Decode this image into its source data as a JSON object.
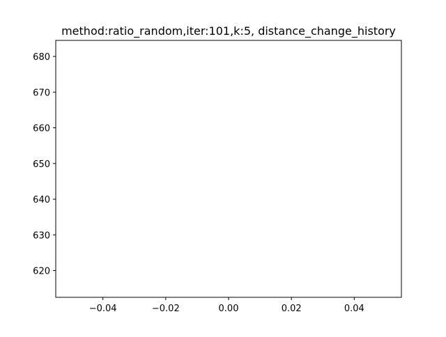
{
  "chart_data": {
    "type": "line",
    "title": "method:ratio_random,iter:101,k:5, distance_change_history",
    "xlabel": "",
    "ylabel": "",
    "xlim": [
      -0.055,
      0.055
    ],
    "ylim": [
      612.5,
      684.5
    ],
    "xticks": [
      -0.04,
      -0.02,
      0.0,
      0.02,
      0.04
    ],
    "xtick_labels": [
      "−0.04",
      "−0.02",
      "0.00",
      "0.02",
      "0.04"
    ],
    "yticks": [
      620,
      630,
      640,
      650,
      660,
      670,
      680
    ],
    "ytick_labels": [
      "620",
      "630",
      "640",
      "650",
      "660",
      "670",
      "680"
    ],
    "grid": false,
    "series": [
      {
        "x": [],
        "values": []
      }
    ]
  }
}
